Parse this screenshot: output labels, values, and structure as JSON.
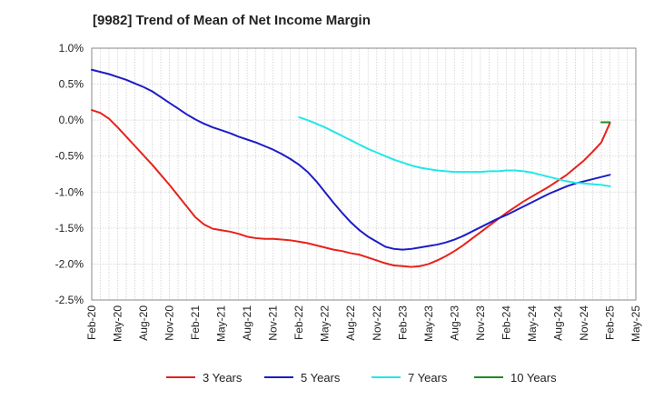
{
  "chart_data": {
    "type": "line",
    "title": "[9982]  Trend of Mean of Net Income Margin",
    "xlabel": "",
    "ylabel": "",
    "x_ticks": [
      "Feb-20",
      "May-20",
      "Aug-20",
      "Nov-20",
      "Feb-21",
      "May-21",
      "Aug-21",
      "Nov-21",
      "Feb-22",
      "May-22",
      "Aug-22",
      "Nov-22",
      "Feb-23",
      "May-23",
      "Aug-23",
      "Nov-23",
      "Feb-24",
      "May-24",
      "Aug-24",
      "Nov-24",
      "Feb-25",
      "May-25"
    ],
    "y_ticks": [
      "1.0%",
      "0.5%",
      "0.0%",
      "-0.5%",
      "-1.0%",
      "-1.5%",
      "-2.0%",
      "-2.5%"
    ],
    "ylim": [
      -2.5,
      1.0
    ],
    "grid": true,
    "legend_position": "bottom",
    "series": [
      {
        "name": "3 Years",
        "color": "#e8211b",
        "x": [
          "Feb-20",
          "Mar-20",
          "Apr-20",
          "May-20",
          "Jun-20",
          "Jul-20",
          "Aug-20",
          "Sep-20",
          "Oct-20",
          "Nov-20",
          "Dec-20",
          "Jan-21",
          "Feb-21",
          "Mar-21",
          "Apr-21",
          "May-21",
          "Jun-21",
          "Jul-21",
          "Aug-21",
          "Sep-21",
          "Oct-21",
          "Nov-21",
          "Dec-21",
          "Jan-22",
          "Feb-22",
          "Mar-22",
          "Apr-22",
          "May-22",
          "Jun-22",
          "Jul-22",
          "Aug-22",
          "Sep-22",
          "Oct-22",
          "Nov-22",
          "Dec-22",
          "Jan-23",
          "Feb-23",
          "Mar-23",
          "Apr-23",
          "May-23",
          "Jun-23",
          "Jul-23",
          "Aug-23",
          "Sep-23",
          "Oct-23",
          "Nov-23",
          "Dec-23",
          "Jan-24",
          "Feb-24",
          "Mar-24",
          "Apr-24",
          "May-24",
          "Jun-24",
          "Jul-24",
          "Aug-24",
          "Sep-24",
          "Oct-24",
          "Nov-24",
          "Dec-24",
          "Jan-25",
          "Feb-25"
        ],
        "values": [
          0.14,
          0.1,
          0.02,
          -0.1,
          -0.23,
          -0.36,
          -0.49,
          -0.62,
          -0.76,
          -0.9,
          -1.05,
          -1.2,
          -1.35,
          -1.45,
          -1.51,
          -1.53,
          -1.55,
          -1.58,
          -1.62,
          -1.64,
          -1.65,
          -1.65,
          -1.66,
          -1.67,
          -1.69,
          -1.71,
          -1.74,
          -1.77,
          -1.8,
          -1.82,
          -1.85,
          -1.87,
          -1.91,
          -1.95,
          -1.99,
          -2.02,
          -2.03,
          -2.04,
          -2.03,
          -2.0,
          -1.95,
          -1.89,
          -1.82,
          -1.74,
          -1.65,
          -1.56,
          -1.47,
          -1.38,
          -1.29,
          -1.21,
          -1.13,
          -1.06,
          -0.99,
          -0.92,
          -0.84,
          -0.76,
          -0.66,
          -0.56,
          -0.44,
          -0.31,
          -0.04
        ]
      },
      {
        "name": "5 Years",
        "color": "#1c1cc8",
        "x": [
          "Feb-20",
          "Mar-20",
          "Apr-20",
          "May-20",
          "Jun-20",
          "Jul-20",
          "Aug-20",
          "Sep-20",
          "Oct-20",
          "Nov-20",
          "Dec-20",
          "Jan-21",
          "Feb-21",
          "Mar-21",
          "Apr-21",
          "May-21",
          "Jun-21",
          "Jul-21",
          "Aug-21",
          "Sep-21",
          "Oct-21",
          "Nov-21",
          "Dec-21",
          "Jan-22",
          "Feb-22",
          "Mar-22",
          "Apr-22",
          "May-22",
          "Jun-22",
          "Jul-22",
          "Aug-22",
          "Sep-22",
          "Oct-22",
          "Nov-22",
          "Dec-22",
          "Jan-23",
          "Feb-23",
          "Mar-23",
          "Apr-23",
          "May-23",
          "Jun-23",
          "Jul-23",
          "Aug-23",
          "Sep-23",
          "Oct-23",
          "Nov-23",
          "Dec-23",
          "Jan-24",
          "Feb-24",
          "Mar-24",
          "Apr-24",
          "May-24",
          "Jun-24",
          "Jul-24",
          "Aug-24",
          "Sep-24",
          "Oct-24",
          "Nov-24",
          "Dec-24",
          "Jan-25",
          "Feb-25"
        ],
        "values": [
          0.7,
          0.67,
          0.64,
          0.6,
          0.56,
          0.51,
          0.46,
          0.4,
          0.32,
          0.24,
          0.16,
          0.08,
          0.01,
          -0.05,
          -0.1,
          -0.14,
          -0.18,
          -0.23,
          -0.27,
          -0.31,
          -0.36,
          -0.41,
          -0.47,
          -0.54,
          -0.62,
          -0.72,
          -0.85,
          -1.0,
          -1.15,
          -1.29,
          -1.42,
          -1.53,
          -1.62,
          -1.69,
          -1.76,
          -1.79,
          -1.8,
          -1.79,
          -1.77,
          -1.75,
          -1.73,
          -1.7,
          -1.66,
          -1.61,
          -1.55,
          -1.49,
          -1.43,
          -1.37,
          -1.32,
          -1.26,
          -1.2,
          -1.14,
          -1.08,
          -1.02,
          -0.97,
          -0.92,
          -0.88,
          -0.85,
          -0.82,
          -0.79,
          -0.76
        ]
      },
      {
        "name": "7 Years",
        "color": "#22e8e8",
        "x": [
          "Feb-22",
          "Mar-22",
          "Apr-22",
          "May-22",
          "Jun-22",
          "Jul-22",
          "Aug-22",
          "Sep-22",
          "Oct-22",
          "Nov-22",
          "Dec-22",
          "Jan-23",
          "Feb-23",
          "Mar-23",
          "Apr-23",
          "May-23",
          "Jun-23",
          "Jul-23",
          "Aug-23",
          "Sep-23",
          "Oct-23",
          "Nov-23",
          "Dec-23",
          "Jan-24",
          "Feb-24",
          "Mar-24",
          "Apr-24",
          "May-24",
          "Jun-24",
          "Jul-24",
          "Aug-24",
          "Sep-24",
          "Oct-24",
          "Nov-24",
          "Dec-24",
          "Jan-25",
          "Feb-25"
        ],
        "values": [
          0.04,
          0.0,
          -0.05,
          -0.1,
          -0.16,
          -0.22,
          -0.28,
          -0.34,
          -0.4,
          -0.45,
          -0.5,
          -0.55,
          -0.59,
          -0.63,
          -0.66,
          -0.68,
          -0.7,
          -0.71,
          -0.72,
          -0.72,
          -0.72,
          -0.72,
          -0.71,
          -0.71,
          -0.7,
          -0.7,
          -0.71,
          -0.73,
          -0.76,
          -0.79,
          -0.82,
          -0.85,
          -0.87,
          -0.88,
          -0.89,
          -0.9,
          -0.92
        ]
      },
      {
        "name": "10 Years",
        "color": "#1e8c1e",
        "x": [
          "Jan-25",
          "Feb-25"
        ],
        "values": [
          -0.03,
          -0.03
        ]
      }
    ]
  }
}
